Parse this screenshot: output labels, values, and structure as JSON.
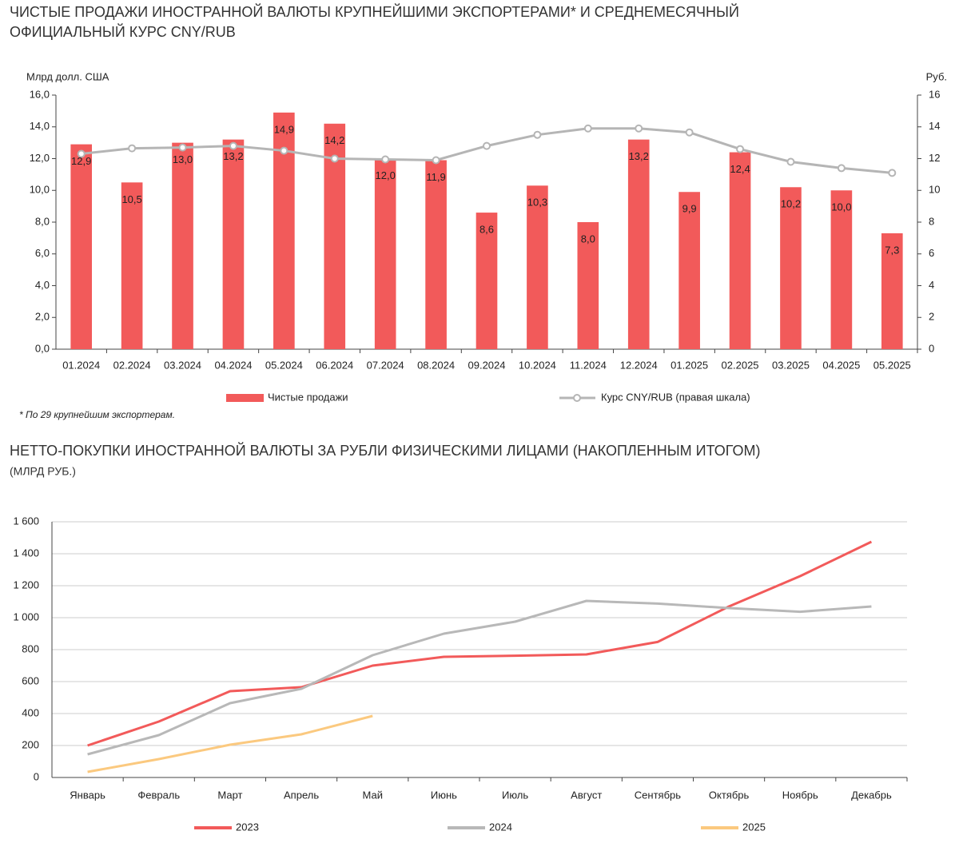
{
  "chart_data": [
    {
      "type": "bar",
      "title": "ЧИСТЫЕ ПРОДАЖИ ИНОСТРАННОЙ ВАЛЮТЫ КРУПНЕЙШИМИ ЭКСПОРТЕРАМИ* И СРЕДНЕМЕСЯЧНЫЙ",
      "subtitle": "ОФИЦИАЛЬНЫЙ КУРС CNY/RUB",
      "y_label": "Млрд долл. США",
      "y2_label": "Руб.",
      "footnote": "* По 29 крупнейшим экспортерам.",
      "categories": [
        "01.2024",
        "02.2024",
        "03.2024",
        "04.2024",
        "05.2024",
        "06.2024",
        "07.2024",
        "08.2024",
        "09.2024",
        "10.2024",
        "11.2024",
        "12.2024",
        "01.2025",
        "02.2025",
        "03.2025",
        "04.2025",
        "05.2025"
      ],
      "series": [
        {
          "name": "Чистые продажи",
          "type": "bar",
          "color": "#f25a5a",
          "values": [
            12.9,
            10.5,
            13.0,
            13.2,
            14.9,
            14.2,
            12.0,
            11.9,
            8.6,
            10.3,
            8.0,
            13.2,
            9.9,
            12.4,
            10.2,
            10.0,
            7.3
          ],
          "value_labels": [
            "12,9",
            "10,5",
            "13,0",
            "13,2",
            "14,9",
            "14,2",
            "12,0",
            "11,9",
            "8,6",
            "10,3",
            "8,0",
            "13,2",
            "9,9",
            "12,4",
            "10,2",
            "10,0",
            "7,3"
          ]
        },
        {
          "name": "Курс CNY/RUB (правая шкала)",
          "type": "line",
          "axis": "y2",
          "color": "#b5b5b5",
          "values": [
            12.3,
            12.65,
            12.7,
            12.8,
            12.5,
            12.0,
            11.95,
            11.9,
            12.8,
            13.5,
            13.9,
            13.9,
            13.65,
            12.6,
            11.8,
            11.4,
            11.1
          ]
        }
      ],
      "ylim": [
        0,
        16
      ],
      "yticks": [
        {
          "value": 0,
          "label": "0,0"
        },
        {
          "value": 2,
          "label": "2,0"
        },
        {
          "value": 4,
          "label": "4,0"
        },
        {
          "value": 6,
          "label": "6,0"
        },
        {
          "value": 8,
          "label": "8,0"
        },
        {
          "value": 10,
          "label": "10,0"
        },
        {
          "value": 12,
          "label": "12,0"
        },
        {
          "value": 14,
          "label": "14,0"
        },
        {
          "value": 16,
          "label": "16,0"
        }
      ],
      "y2lim": [
        0,
        16
      ],
      "y2ticks": [
        0,
        2,
        4,
        6,
        8,
        10,
        12,
        14,
        16
      ],
      "grid": false
    },
    {
      "type": "line",
      "title": "НЕТТО-ПОКУПКИ ИНОСТРАННОЙ ВАЛЮТЫ ЗА РУБЛИ ФИЗИЧЕСКИМИ ЛИЦАМИ (НАКОПЛЕННЫМ ИТОГОМ)",
      "subtitle": "(МЛРД РУБ.)",
      "categories": [
        "Январь",
        "Февраль",
        "Март",
        "Апрель",
        "Май",
        "Июнь",
        "Июль",
        "Август",
        "Сентябрь",
        "Октябрь",
        "Ноябрь",
        "Декабрь"
      ],
      "series": [
        {
          "name": "2023",
          "color": "#f25a5a",
          "values": [
            200,
            350,
            540,
            565,
            700,
            755,
            762,
            770,
            848,
            1070,
            1260,
            1475
          ]
        },
        {
          "name": "2024",
          "color": "#b8b8b8",
          "values": [
            145,
            265,
            465,
            555,
            765,
            900,
            975,
            1105,
            1088,
            1060,
            1037,
            1070
          ]
        },
        {
          "name": "2025",
          "color": "#fbc97f",
          "values": [
            35,
            115,
            205,
            270,
            385,
            null,
            null,
            null,
            null,
            null,
            null,
            null
          ]
        }
      ],
      "ylim": [
        0,
        1600
      ],
      "yticks": [
        0,
        200,
        400,
        600,
        800,
        {
          "value": 1000,
          "label": "1 000"
        },
        {
          "value": 1200,
          "label": "1 200"
        },
        {
          "value": 1400,
          "label": "1 400"
        },
        {
          "value": 1600,
          "label": "1 600"
        }
      ],
      "grid": true
    }
  ]
}
